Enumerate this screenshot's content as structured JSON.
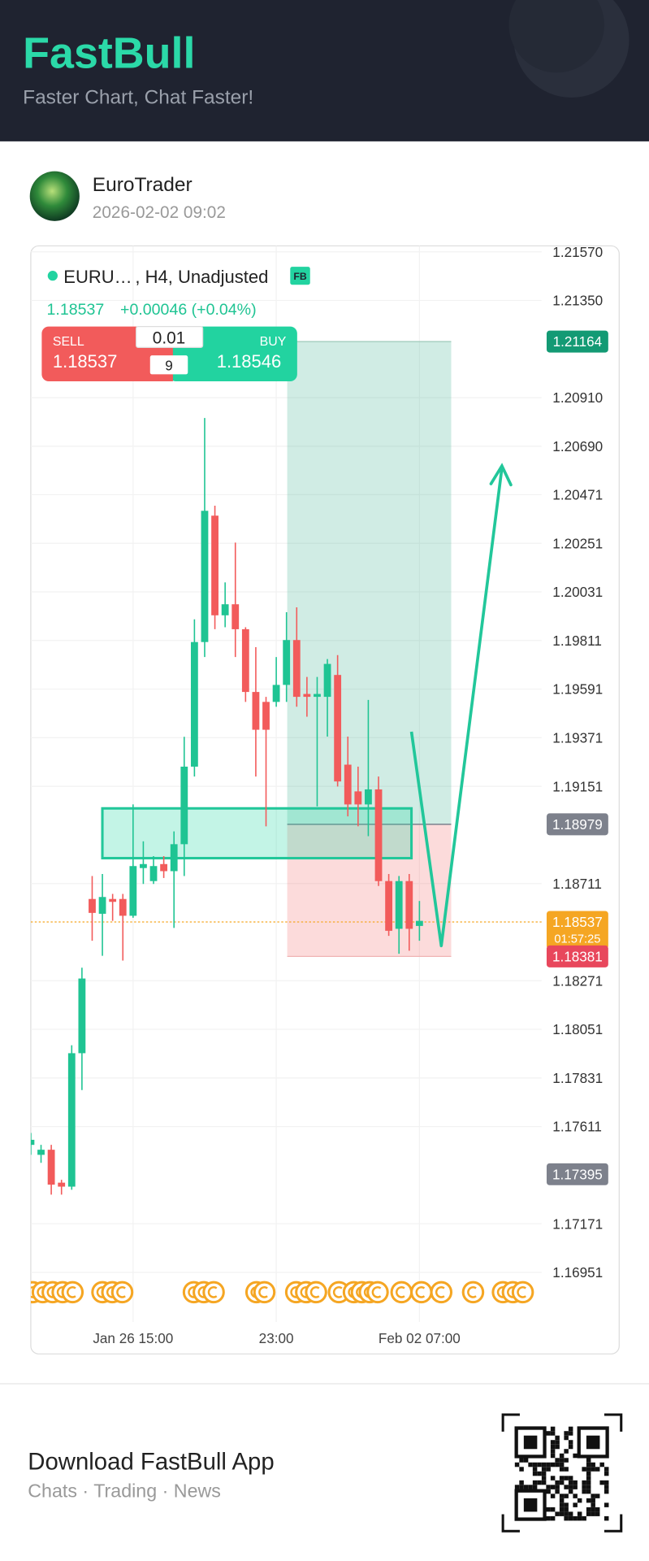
{
  "header": {
    "brand": "FastBull",
    "tagline": "Faster Chart, Chat Faster!"
  },
  "post": {
    "author": "EuroTrader",
    "time": "2026-02-02 09:02"
  },
  "chart_data": {
    "type": "candlestick",
    "symbol": "EURU…",
    "interval": ", H4, Unadjusted",
    "badge": "FB",
    "last": "1.18537",
    "change": "+0.00046 (+0.04%)",
    "trade": {
      "sell_label": "SELL",
      "sell": "1.18537",
      "lot": "0.01",
      "spread": "9",
      "buy_label": "BUY",
      "buy": "1.18546"
    },
    "categories": [
      null,
      null,
      null,
      null,
      null,
      null,
      null,
      null,
      null,
      null,
      "Jan 26 15:00",
      null,
      null,
      null,
      null,
      null,
      null,
      null,
      null,
      null,
      null,
      null,
      null,
      null,
      "23:00",
      null,
      null,
      null,
      null,
      null,
      null,
      null,
      null,
      null,
      null,
      null,
      null,
      null,
      "Feb 02 07:00"
    ],
    "open": [
      1.17528,
      1.17483,
      1.17506,
      1.17357,
      1.17339,
      1.17943,
      1.18641,
      1.18574,
      1.18641,
      1.18641,
      1.18565,
      1.18781,
      1.18722,
      1.18799,
      1.18767,
      1.18889,
      1.1924,
      1.19804,
      1.20376,
      1.19925,
      1.19975,
      1.19862,
      1.19578,
      1.19533,
      1.19533,
      1.1961,
      1.19813,
      1.19569,
      1.19556,
      1.19556,
      1.19655,
      1.19249,
      1.19128,
      1.19069,
      1.19137,
      1.18722,
      1.18506,
      1.18722,
      1.18519
    ],
    "high": [
      1.17582,
      1.17528,
      1.17528,
      1.1737,
      1.17979,
      1.1833,
      1.18745,
      1.18754,
      1.18664,
      1.18664,
      1.19069,
      1.18902,
      1.18835,
      1.18835,
      1.18947,
      1.19375,
      1.19907,
      1.20818,
      1.20421,
      1.20074,
      1.20254,
      1.19871,
      1.19781,
      1.19556,
      1.19736,
      1.19939,
      1.19961,
      1.19646,
      1.19646,
      1.19727,
      1.19745,
      1.19376,
      1.1924,
      1.19542,
      1.19195,
      1.18754,
      1.18745,
      1.18754,
      1.18632
    ],
    "low": [
      1.17483,
      1.17447,
      1.17303,
      1.17303,
      1.17325,
      1.17776,
      1.18452,
      1.18384,
      1.18542,
      1.18362,
      1.18556,
      1.18709,
      1.18709,
      1.18736,
      1.1851,
      1.18745,
      1.19195,
      1.19736,
      1.19862,
      1.19871,
      1.19736,
      1.19533,
      1.19195,
      1.1897,
      1.19511,
      1.19533,
      1.19511,
      1.19466,
      1.1906,
      1.19376,
      1.1915,
      1.19015,
      1.1897,
      1.18925,
      1.187,
      1.18474,
      1.18393,
      1.18407,
      1.18452
    ],
    "close": [
      1.17551,
      1.17506,
      1.17348,
      1.17339,
      1.17943,
      1.18281,
      1.18578,
      1.1865,
      1.18628,
      1.18565,
      1.1879,
      1.18799,
      1.1879,
      1.18767,
      1.18889,
      1.1924,
      1.19804,
      1.20398,
      1.19925,
      1.19975,
      1.19862,
      1.19578,
      1.19407,
      1.19407,
      1.1961,
      1.19813,
      1.19556,
      1.19556,
      1.19569,
      1.19705,
      1.19173,
      1.19069,
      1.19069,
      1.19137,
      1.18722,
      1.18497,
      1.18722,
      1.18506,
      1.18542
    ],
    "up_color": "#1fc493",
    "down_color": "#f25b5b",
    "ylim": [
      1.16726,
      1.21597
    ],
    "yticks": [
      {
        "value": 1.2157,
        "label": "1.21570"
      },
      {
        "value": 1.2135,
        "label": "1.21350"
      },
      {
        "value": 1.2091,
        "label": "1.20910"
      },
      {
        "value": 1.2069,
        "label": "1.20690"
      },
      1.20471,
      1.20251,
      1.20031,
      1.19811,
      1.19591,
      1.19371,
      1.19151,
      1.18711,
      1.18271,
      1.18051,
      1.17831,
      1.17611,
      1.17171,
      1.16951
    ],
    "grid": true,
    "price_tags": [
      {
        "value": 1.21164,
        "color": "#139a74"
      },
      {
        "value": 1.18979,
        "color": "#7d818c"
      },
      {
        "value": 1.18537,
        "countdown": "01:57:25",
        "color": "#f5a623"
      },
      {
        "value": 1.18381,
        "color": "#e8475c"
      },
      {
        "value": 1.17395,
        "color": "#7d818c"
      }
    ]
  },
  "footer": {
    "title": "Download FastBull App",
    "subtitle": "Chats · Trading · News"
  }
}
